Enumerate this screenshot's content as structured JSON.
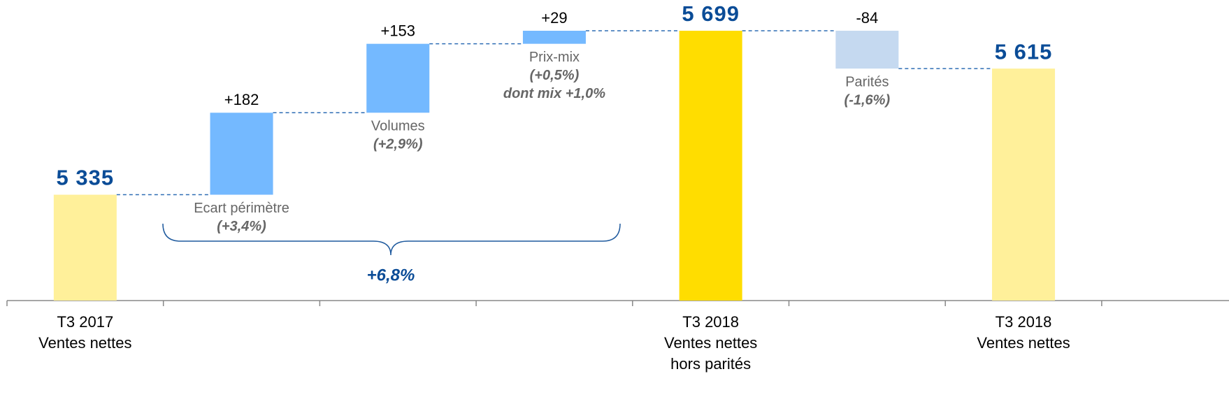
{
  "chart_data": {
    "type": "waterfall",
    "categories": [
      [
        "T3 2017",
        "Ventes nettes"
      ],
      null,
      null,
      null,
      [
        "T3 2018",
        "Ventes nettes",
        "hors parités"
      ],
      null,
      [
        "T3 2018",
        "Ventes nettes"
      ]
    ],
    "measure": [
      "absolute",
      "relative",
      "relative",
      "relative",
      "absolute",
      "relative",
      "absolute"
    ],
    "values": [
      5335,
      182,
      153,
      29,
      5699,
      -84,
      5615
    ],
    "value_labels": [
      "5 335",
      "+182",
      "+153",
      "+29",
      "5 699",
      "-84",
      "5 615"
    ],
    "colors": [
      "#FFF09A",
      "#74B9FF",
      "#74B9FF",
      "#74B9FF",
      "#FFDD00",
      "#C5D9F0",
      "#FFF09A"
    ],
    "step_labels": [
      null,
      "Ecart périmètre",
      "Volumes",
      "Prix-mix",
      null,
      "Parités",
      null
    ],
    "step_notes": [
      null,
      [
        "(+3,4%)"
      ],
      [
        "(+2,9%)"
      ],
      [
        "(+0,5%)",
        "dont mix +1,0%"
      ],
      null,
      [
        "(-1,6%)"
      ],
      null
    ],
    "annotations": [
      {
        "text": "+6,8%"
      }
    ],
    "ylim": [
      5100,
      5730
    ]
  }
}
